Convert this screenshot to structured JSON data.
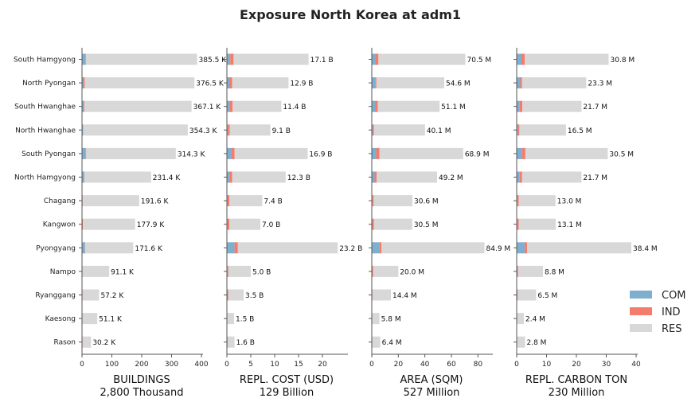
{
  "title": "Exposure North Korea at adm1",
  "colors": {
    "COM": "#7fafcf",
    "IND": "#f47c6c",
    "RES": "#d8d8d8"
  },
  "legend": {
    "placement": "right",
    "entries": [
      "COM",
      "IND",
      "RES"
    ]
  },
  "chart_data": {
    "type": "bar",
    "orientation": "horizontal",
    "stacked": true,
    "categories": [
      "South Hamgyong",
      "North Pyongan",
      "South Hwanghae",
      "North Hwanghae",
      "South Pyongan",
      "North Hamgyong",
      "Chagang",
      "Kangwon",
      "Pyongyang",
      "Nampo",
      "Ryanggang",
      "Kaesong",
      "Rason"
    ],
    "panels": [
      {
        "xlabel": "BUILDINGS",
        "total_label": "2,800 Thousand",
        "xlim": [
          0,
          400
        ],
        "xticks": [
          0,
          100,
          200,
          300,
          400
        ],
        "series": [
          {
            "name": "COM",
            "values": [
              12,
              4,
              6,
              3,
              13,
              7,
              2,
              1,
              10,
              1,
              1,
              1,
              1
            ]
          },
          {
            "name": "IND",
            "values": [
              1,
              5,
              2,
              1,
              1,
              1,
              1,
              2,
              1,
              1,
              1,
              1,
              1
            ]
          },
          {
            "name": "RES",
            "values": [
              372.5,
              367.6,
              359.1,
              350.3,
              300.3,
              223.4,
              188.6,
              174.9,
              160.6,
              89.1,
              55.2,
              49.1,
              28.2
            ]
          }
        ],
        "labels": [
          "385.5 K",
          "376.5 K",
          "367.1 K",
          "354.3 K",
          "314.3 K",
          "231.4 K",
          "191.6 K",
          "177.9 K",
          "171.6 K",
          "91.1 K",
          "57.2 K",
          "51.1 K",
          "30.2 K"
        ]
      },
      {
        "xlabel": "REPL. COST (USD)",
        "total_label": "129 Billion",
        "xlim": [
          0,
          25
        ],
        "xticks": [
          0,
          5,
          10,
          15,
          20
        ],
        "series": [
          {
            "name": "COM",
            "values": [
              0.7,
              0.5,
              0.6,
              0.2,
              0.9,
              0.6,
              0.1,
              0.1,
              1.6,
              0.1,
              0.05,
              0.05,
              0.05
            ]
          },
          {
            "name": "IND",
            "values": [
              0.7,
              0.6,
              0.6,
              0.4,
              0.7,
              0.5,
              0.4,
              0.4,
              0.7,
              0.2,
              0.2,
              0.05,
              0.1
            ]
          },
          {
            "name": "RES",
            "values": [
              15.7,
              11.8,
              10.2,
              8.5,
              15.3,
              11.2,
              6.9,
              6.5,
              20.9,
              4.7,
              3.25,
              1.4,
              1.45
            ]
          }
        ],
        "labels": [
          "17.1 B",
          "12.9 B",
          "11.4 B",
          "9.1 B",
          "16.9 B",
          "12.3 B",
          "7.4 B",
          "7.0 B",
          "23.2 B",
          "5.0 B",
          "3.5 B",
          "1.5 B",
          "1.6 B"
        ]
      },
      {
        "xlabel": "AREA (SQM)",
        "total_label": "527 Million",
        "xlim": [
          0,
          90
        ],
        "xticks": [
          0,
          20,
          40,
          60,
          80
        ],
        "series": [
          {
            "name": "COM",
            "values": [
              3.0,
              2.5,
              2.4,
              0.6,
              3.3,
              2.1,
              0.4,
              0.3,
              5.5,
              0.3,
              0.2,
              0.1,
              0.1
            ]
          },
          {
            "name": "IND",
            "values": [
              2.0,
              1.0,
              2.1,
              1.0,
              2.5,
              1.5,
              1.0,
              1.2,
              1.7,
              0.6,
              0.3,
              0.1,
              0.1
            ]
          },
          {
            "name": "RES",
            "values": [
              65.5,
              51.1,
              46.6,
              38.5,
              63.1,
              45.6,
              29.2,
              29.0,
              77.7,
              19.1,
              13.9,
              5.6,
              6.2
            ]
          }
        ],
        "labels": [
          "70.5 M",
          "54.6 M",
          "51.1 M",
          "40.1 M",
          "68.9 M",
          "49.2 M",
          "30.6 M",
          "30.5 M",
          "84.9 M",
          "20.0 M",
          "14.4 M",
          "5.8 M",
          "6.4 M"
        ]
      },
      {
        "xlabel": "REPL. CARBON TON",
        "total_label": "230 Million",
        "xlim": [
          0,
          40
        ],
        "xticks": [
          0,
          10,
          20,
          30,
          40
        ],
        "series": [
          {
            "name": "COM",
            "values": [
              1.6,
              1.2,
              1.0,
              0.5,
              1.8,
              1.0,
              0.2,
              0.2,
              2.7,
              0.1,
              0.1,
              0.05,
              0.05
            ]
          },
          {
            "name": "IND",
            "values": [
              1.1,
              0.6,
              0.9,
              0.4,
              1.1,
              0.8,
              0.5,
              0.5,
              0.8,
              0.3,
              0.2,
              0.05,
              0.05
            ]
          },
          {
            "name": "RES",
            "values": [
              28.1,
              21.5,
              19.8,
              15.6,
              27.6,
              19.9,
              12.3,
              12.4,
              34.9,
              8.4,
              6.2,
              2.3,
              2.7
            ]
          }
        ],
        "labels": [
          "30.8 M",
          "23.3 M",
          "21.7 M",
          "16.5 M",
          "30.5 M",
          "21.7 M",
          "13.0 M",
          "13.1 M",
          "38.4 M",
          "8.8 M",
          "6.5 M",
          "2.4 M",
          "2.8 M"
        ]
      }
    ]
  }
}
